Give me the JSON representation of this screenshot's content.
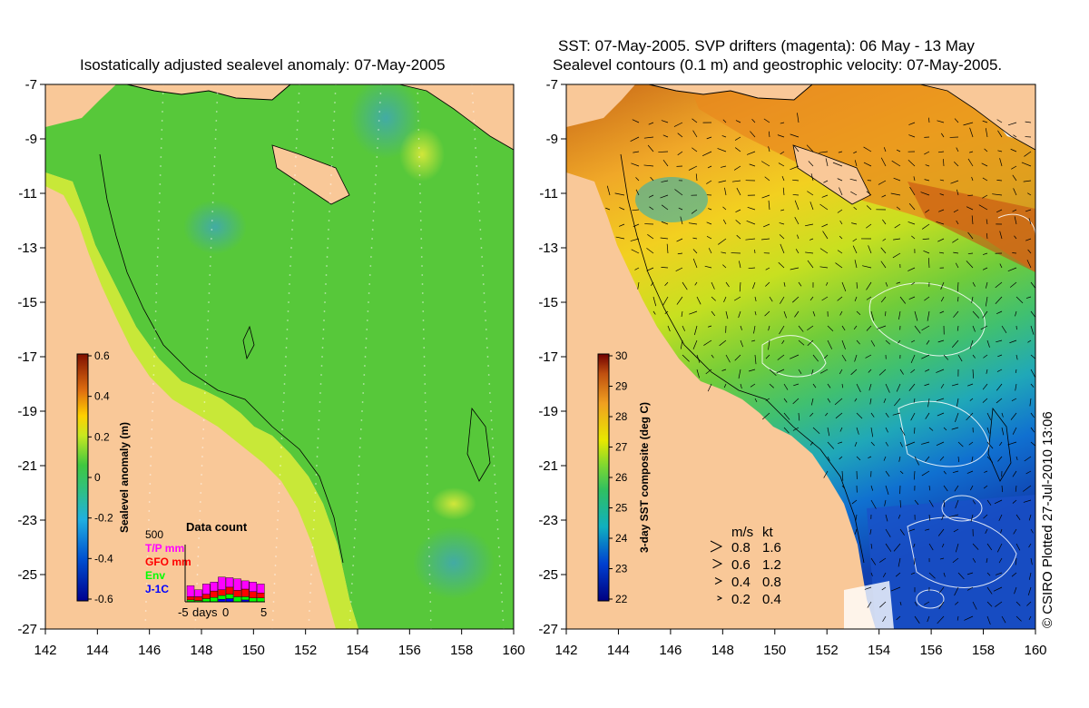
{
  "left_panel": {
    "title": "Isostatically adjusted sealevel anomaly: 07-May-2005",
    "colorbar": {
      "label": "Sealevel anomaly (m)",
      "ticks": [
        "0.6",
        "0.4",
        "0.2",
        "0",
        "-0.2",
        "-0.4",
        "-0.6"
      ],
      "range": [
        -0.6,
        0.6
      ]
    },
    "inset": {
      "title": "Data count",
      "ymax_label": "500",
      "legend": [
        {
          "label": "T/P mm",
          "color": "#ff00ff"
        },
        {
          "label": "GFO mm",
          "color": "#ff0000"
        },
        {
          "label": "Env",
          "color": "#00ff00"
        },
        {
          "label": "J-1C",
          "color": "#0000ff"
        }
      ],
      "xlabels": [
        "-5",
        "days",
        "0",
        "5"
      ],
      "stacks": [
        [
          35,
          10,
          6,
          0
        ],
        [
          22,
          12,
          4,
          0
        ],
        [
          32,
          14,
          10,
          0
        ],
        [
          28,
          20,
          14,
          0
        ],
        [
          40,
          18,
          12,
          8
        ],
        [
          30,
          22,
          14,
          10
        ],
        [
          36,
          20,
          16,
          0
        ],
        [
          26,
          24,
          10,
          6
        ],
        [
          30,
          20,
          12,
          0
        ],
        [
          28,
          16,
          12,
          0
        ]
      ]
    }
  },
  "right_panel": {
    "title_line1": "SST: 07-May-2005. SVP drifters (magenta): 06 May - 13 May",
    "title_line2": "Sealevel contours (0.1 m) and geostrophic velocity: 07-May-2005.",
    "colorbar": {
      "label": "3-day SST composite (deg C)",
      "ticks": [
        "30",
        "29",
        "28",
        "27",
        "26",
        "25",
        "24",
        "23",
        "22"
      ],
      "range": [
        22,
        30
      ]
    },
    "speed_legend": {
      "header": [
        "m/s",
        "kt"
      ],
      "rows": [
        [
          "0.8",
          "1.6"
        ],
        [
          "0.6",
          "1.2"
        ],
        [
          "0.4",
          "0.8"
        ],
        [
          "0.2",
          "0.4"
        ]
      ]
    },
    "credit": "© CSIRO Plotted 27-Jul-2010 13:06"
  },
  "axes": {
    "x_ticks": [
      "142",
      "144",
      "146",
      "148",
      "150",
      "152",
      "154",
      "156",
      "158",
      "160"
    ],
    "y_ticks": [
      "-7",
      "-9",
      "-11",
      "-13",
      "-15",
      "-17",
      "-19",
      "-21",
      "-23",
      "-25",
      "-27"
    ],
    "lon_range": [
      142,
      160
    ],
    "lat_range": [
      -27,
      -7
    ]
  },
  "colors": {
    "land": "#f9c898",
    "sla_base": "#57c83a",
    "sst_warm": "#e8801a",
    "sst_cool": "#1a4cc0"
  }
}
